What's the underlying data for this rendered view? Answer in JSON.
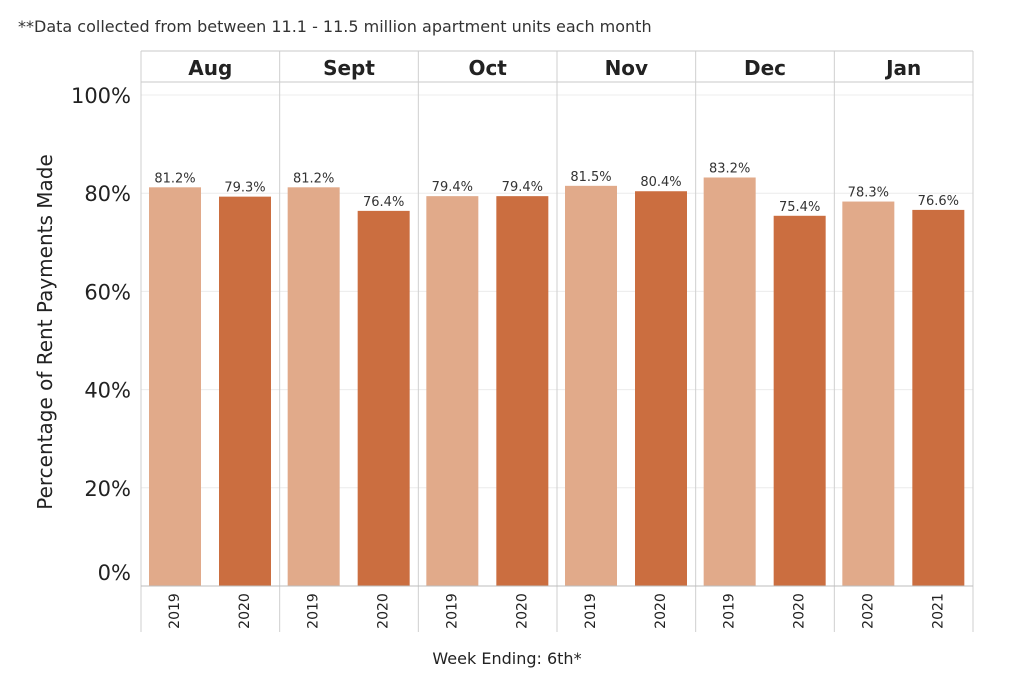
{
  "chart_data": {
    "type": "bar",
    "note": "**Data collected from between 11.1 - 11.5 million apartment units each month",
    "ylabel": "Percentage of Rent Payments Made",
    "xlabel": "Week Ending: 6th*",
    "ylim": [
      0,
      100
    ],
    "y_ticks": [
      0,
      20,
      40,
      60,
      80,
      100
    ],
    "y_tick_labels": [
      "0%",
      "20%",
      "40%",
      "60%",
      "80%",
      "100%"
    ],
    "grid": true,
    "colors": {
      "light": "#e1aa8a",
      "dark": "#cb6e40"
    },
    "groups": [
      {
        "month": "Aug",
        "bars": [
          {
            "year": "2019",
            "value": 81.2,
            "label": "81.2%",
            "shade": "light"
          },
          {
            "year": "2020",
            "value": 79.3,
            "label": "79.3%",
            "shade": "dark"
          }
        ]
      },
      {
        "month": "Sept",
        "bars": [
          {
            "year": "2019",
            "value": 81.2,
            "label": "81.2%",
            "shade": "light"
          },
          {
            "year": "2020",
            "value": 76.4,
            "label": "76.4%",
            "shade": "dark"
          }
        ]
      },
      {
        "month": "Oct",
        "bars": [
          {
            "year": "2019",
            "value": 79.4,
            "label": "79.4%",
            "shade": "light"
          },
          {
            "year": "2020",
            "value": 79.4,
            "label": "79.4%",
            "shade": "dark"
          }
        ]
      },
      {
        "month": "Nov",
        "bars": [
          {
            "year": "2019",
            "value": 81.5,
            "label": "81.5%",
            "shade": "light"
          },
          {
            "year": "2020",
            "value": 80.4,
            "label": "80.4%",
            "shade": "dark"
          }
        ]
      },
      {
        "month": "Dec",
        "bars": [
          {
            "year": "2019",
            "value": 83.2,
            "label": "83.2%",
            "shade": "light"
          },
          {
            "year": "2020",
            "value": 75.4,
            "label": "75.4%",
            "shade": "dark"
          }
        ]
      },
      {
        "month": "Jan",
        "bars": [
          {
            "year": "2020",
            "value": 78.3,
            "label": "78.3%",
            "shade": "light"
          },
          {
            "year": "2021",
            "value": 76.6,
            "label": "76.6%",
            "shade": "dark"
          }
        ]
      }
    ]
  }
}
